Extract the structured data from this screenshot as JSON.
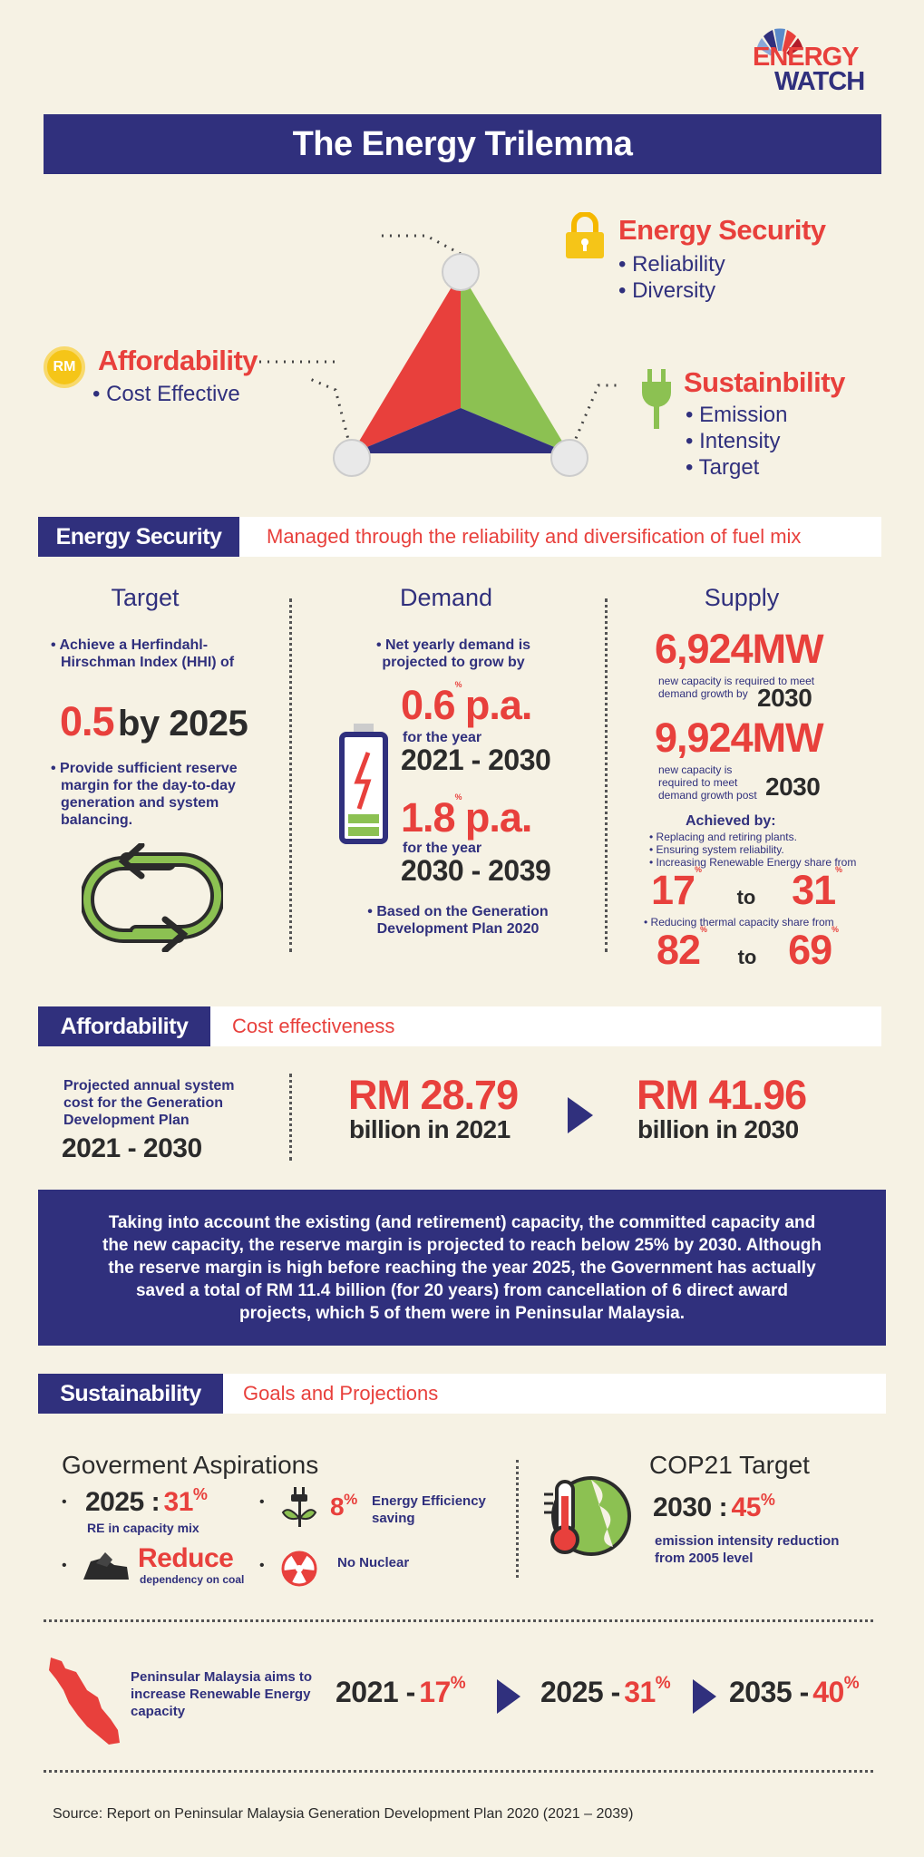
{
  "logo": {
    "line1": "ENERGY",
    "line2": "WATCH"
  },
  "title": "The Energy Trilemma",
  "trilemma": {
    "security": {
      "title": "Energy Security",
      "items": [
        "Reliability",
        "Diversity"
      ]
    },
    "affordability": {
      "title": "Affordability",
      "badge": "RM",
      "items": [
        "Cost Effective"
      ]
    },
    "sustainability": {
      "title": "Sustainbility",
      "items": [
        "Emission",
        "Intensity",
        "Target"
      ]
    }
  },
  "energy_security": {
    "label": "Energy Security",
    "desc": "Managed through the reliability and diversification of fuel mix",
    "target": {
      "title": "Target",
      "point1": "Achieve a Herfindahl-Hirschman Index (HHI) of",
      "value": "0.5",
      "value_suffix": "by 2025",
      "point2": "Provide sufficient reserve margin for the day-to-day generation and system balancing."
    },
    "demand": {
      "title": "Demand",
      "intro": "Net yearly demand is projected to grow by",
      "rate1": "0.6",
      "rate1_unit": "%",
      "rate1_suffix": "p.a.",
      "for_year": "for the year",
      "period1": "2021 - 2030",
      "rate2": "1.8",
      "rate2_unit": "%",
      "rate2_suffix": "p.a.",
      "period2": "2030 - 2039",
      "note": "Based on the Generation Development Plan 2020"
    },
    "supply": {
      "title": "Supply",
      "cap1": "6,924MW",
      "cap1_text": "new capacity is required to meet demand growth by",
      "cap1_year": "2030",
      "cap2": "9,924MW",
      "cap2_text": "new capacity is required to meet demand growth post",
      "cap2_year": "2030",
      "achieved": "Achieved by:",
      "bullets": [
        "Replacing and retiring plants.",
        "Ensuring system reliability.",
        "Increasing Renewable Energy share from"
      ],
      "re_from": "17",
      "re_to": "31",
      "thermal_text": "Reducing thermal capacity share from",
      "th_from": "82",
      "th_to": "69",
      "pct": "%",
      "to": "to"
    }
  },
  "affordability": {
    "label": "Affordability",
    "desc": "Cost effectiveness",
    "text": "Projected annual system cost for the Generation Development Plan",
    "period": "2021 - 2030",
    "v1": "RM 28.79",
    "v1_sub": "billion in 2021",
    "v2": "RM 41.96",
    "v2_sub": "billion in 2030"
  },
  "panel_text": "Taking into account the existing (and retirement) capacity, the committed capacity and the new capacity, the reserve margin is projected to reach below 25% by 2030. Although the reserve margin is high before reaching the year 2025, the Government has actually saved a total of RM 11.4 billion (for 20 years) from cancellation of 6 direct award projects, which 5 of them were in Peninsular Malaysia.",
  "sustainability": {
    "label": "Sustainability",
    "desc": "Goals and Projections",
    "gov_title": "Goverment Aspirations",
    "re_year": "2025 :",
    "re_val": "31",
    "re_text": "RE in capacity mix",
    "ee_val": "8",
    "ee_text": "Energy Efficiency saving",
    "coal_title": "Reduce",
    "coal_text": "dependency on coal",
    "nuclear": "No Nuclear",
    "cop_title": "COP21 Target",
    "cop_year": "2030 :",
    "cop_val": "45",
    "cop_text": "emission intensity reduction from 2005 level",
    "pct": "%"
  },
  "peninsular": {
    "text": "Peninsular Malaysia aims to increase Renewable Energy capacity",
    "s1_year": "2021 -",
    "s1_val": "17",
    "s2_year": "2025 -",
    "s2_val": "31",
    "s3_year": "2035 -",
    "s3_val": "40",
    "pct": "%"
  },
  "source": "Source: Report on Peninsular Malaysia Generation Development Plan 2020 (2021 – 2039)",
  "colors": {
    "navy": "#30307d",
    "red": "#e8403c",
    "green": "#8cc152",
    "yellow": "#f5c518",
    "cream": "#f6f2e4"
  }
}
